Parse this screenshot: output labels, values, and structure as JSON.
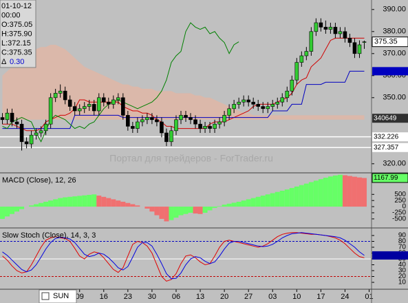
{
  "chart_data": [
    {
      "type": "candlestick",
      "open": [
        341,
        340,
        343,
        339,
        338,
        330,
        329,
        333,
        334,
        335,
        338,
        350,
        352,
        353,
        349,
        346,
        344,
        345,
        346,
        347,
        344,
        350,
        348,
        347,
        349,
        350,
        342,
        337,
        336,
        339,
        340,
        341,
        340,
        339,
        334,
        330,
        335,
        340,
        342,
        341,
        340,
        338,
        336,
        337,
        336,
        338,
        339,
        342,
        345,
        347,
        348,
        349,
        348,
        347,
        346,
        345,
        346,
        347,
        348,
        350,
        353,
        358,
        366,
        369,
        371,
        380,
        384,
        382,
        381,
        382,
        379,
        380,
        377,
        375,
        370,
        375.05
      ],
      "high": [
        343,
        345,
        345,
        341,
        340,
        332,
        335,
        336,
        337,
        340,
        352,
        354,
        356,
        355,
        351,
        348,
        347,
        348,
        349,
        349,
        352,
        352,
        350,
        351,
        352,
        352,
        344,
        339,
        341,
        342,
        343,
        343,
        342,
        341,
        336,
        337,
        342,
        344,
        344,
        343,
        342,
        340,
        339,
        339,
        340,
        341,
        344,
        347,
        349,
        350,
        351,
        351,
        350,
        349,
        348,
        348,
        349,
        350,
        352,
        355,
        360,
        368,
        371,
        373,
        382,
        386,
        386,
        385,
        384,
        384,
        382,
        382,
        379,
        377,
        376,
        375.9
      ],
      "low": [
        338,
        338,
        337,
        336,
        326,
        327,
        327,
        331,
        332,
        333,
        336,
        348,
        350,
        347,
        344,
        342,
        342,
        343,
        344,
        342,
        342,
        346,
        345,
        345,
        347,
        340,
        335,
        334,
        334,
        337,
        338,
        338,
        337,
        332,
        328,
        328,
        333,
        338,
        339,
        338,
        336,
        334,
        334,
        334,
        334,
        336,
        337,
        340,
        343,
        345,
        346,
        346,
        345,
        344,
        343,
        343,
        344,
        345,
        346,
        348,
        351,
        356,
        364,
        367,
        369,
        378,
        380,
        379,
        379,
        377,
        377,
        375,
        373,
        368,
        368,
        372.15
      ],
      "close": [
        340,
        343,
        339,
        338,
        330,
        329,
        333,
        334,
        335,
        338,
        350,
        352,
        353,
        349,
        346,
        344,
        345,
        346,
        347,
        344,
        350,
        348,
        347,
        349,
        350,
        342,
        337,
        336,
        339,
        340,
        341,
        340,
        339,
        334,
        330,
        335,
        340,
        342,
        341,
        340,
        338,
        336,
        337,
        336,
        338,
        339,
        342,
        345,
        347,
        348,
        349,
        348,
        347,
        346,
        345,
        346,
        347,
        348,
        350,
        353,
        358,
        366,
        369,
        371,
        380,
        384,
        382,
        381,
        382,
        379,
        380,
        377,
        375,
        370,
        374,
        375.35
      ],
      "up_color": "#33cc33",
      "down_color": "#000000",
      "lines": [
        {
          "color": "#d00000",
          "values": [
            338,
            338,
            338,
            337,
            336,
            335,
            335,
            335,
            336,
            339,
            340,
            341,
            342,
            342,
            343,
            345,
            349,
            349,
            348,
            348,
            348,
            348,
            348,
            348,
            348,
            346,
            345,
            344,
            344,
            343,
            343,
            342,
            340,
            339,
            337,
            337,
            336,
            336,
            336,
            336,
            336,
            336,
            336,
            338,
            339,
            339,
            339,
            340,
            341,
            342,
            343,
            344,
            346,
            347,
            347,
            347,
            347,
            348,
            349,
            350,
            352,
            356,
            358,
            359,
            364,
            366,
            368,
            372,
            376,
            377,
            377,
            377,
            377,
            377,
            377,
            377
          ]
        },
        {
          "color": "#0000c0",
          "values": [
            336,
            336,
            336,
            336,
            336,
            336,
            336,
            336,
            336,
            336,
            336,
            336,
            336,
            336,
            336,
            342,
            342,
            342,
            342,
            342,
            342,
            342,
            342,
            342,
            342,
            341,
            341,
            341,
            341,
            341,
            341,
            341,
            341,
            341,
            341,
            341,
            341,
            341,
            341,
            341,
            341,
            341,
            341,
            341,
            341,
            341,
            341,
            341,
            341,
            341,
            341,
            341,
            341,
            341,
            341,
            341,
            344,
            344,
            344,
            344,
            347,
            347,
            347,
            356,
            356,
            356,
            356,
            357,
            357,
            357,
            357,
            357,
            362,
            362,
            362,
            362
          ]
        },
        {
          "color": "#008000",
          "values": [
            337,
            336,
            339,
            340,
            341,
            340,
            339,
            334,
            330,
            335,
            340,
            342,
            341,
            340,
            338,
            336,
            337,
            336,
            338,
            339,
            342,
            345,
            347,
            348,
            349,
            348,
            347,
            346,
            345,
            346,
            347,
            348,
            350,
            353,
            358,
            366,
            369,
            371,
            380,
            384,
            382,
            381,
            382,
            379,
            380,
            377,
            375,
            370,
            374,
            375.35,
            null,
            null,
            null,
            null,
            null,
            null,
            null,
            null,
            null,
            null,
            null,
            null,
            null,
            null,
            null,
            null,
            null,
            null,
            null,
            null,
            null,
            null,
            null,
            null,
            null,
            null
          ]
        }
      ],
      "cloud": {
        "color": "#f0b098",
        "upper": [
          360,
          362,
          364,
          366,
          368,
          370,
          371,
          372,
          373,
          373,
          374,
          374,
          373,
          372,
          370,
          368,
          366,
          364,
          363,
          362,
          361,
          360,
          359,
          358,
          357,
          356,
          356,
          355,
          355,
          354,
          354,
          354,
          353,
          353,
          353,
          353,
          352,
          352,
          352,
          352,
          351,
          351,
          350,
          350,
          349,
          348,
          347,
          346,
          345,
          344,
          343,
          343,
          342,
          342,
          342,
          342,
          342,
          342,
          342,
          342,
          342,
          342,
          342,
          342,
          342,
          342,
          342,
          342,
          342,
          342,
          342,
          342,
          342,
          342,
          342,
          342
        ],
        "lower": [
          340,
          340,
          340,
          340,
          340,
          340,
          340,
          340,
          340,
          340,
          340,
          340,
          340,
          340,
          340,
          340,
          340,
          340,
          340,
          340,
          340,
          340,
          340,
          340,
          340,
          340,
          340,
          340,
          340,
          340,
          340,
          340,
          340,
          340,
          340,
          340,
          340,
          340,
          340,
          340,
          340,
          340,
          340,
          340,
          340,
          340,
          340,
          340,
          340,
          340,
          340,
          340,
          340,
          340,
          340,
          340,
          340,
          340,
          340,
          340,
          340,
          340,
          340,
          340,
          340,
          340,
          340,
          340,
          340,
          340,
          340,
          340,
          340,
          340,
          340,
          340
        ]
      },
      "ylim": [
        316,
        394
      ],
      "yticks": [
        {
          "value": 390,
          "label": "390.00"
        },
        {
          "value": 380,
          "label": "380.00"
        },
        {
          "value": 370,
          "label": "370.00"
        },
        {
          "value": 360,
          "label": "360.00"
        },
        {
          "value": 350,
          "label": "350.00"
        },
        {
          "value": 320,
          "label": "320.00"
        }
      ],
      "markers": [
        {
          "value": 340.649,
          "label": "340649"
        },
        332.226,
        327.357
      ],
      "watermark": "Портал для трейдеров - ForTrader.ru",
      "info": {
        "date": "01-10-12",
        "time": "00:00",
        "open": "O:375.05",
        "high": "H:375.90",
        "low": "L:372.15",
        "close": "C:375.35",
        "delta_symbol": "Δ",
        "delta": "0.30"
      }
    },
    {
      "type": "bar",
      "title": "MACD (Close), 12, 26",
      "values": [
        -500,
        -400,
        -300,
        -200,
        -100,
        0,
        50,
        100,
        150,
        200,
        250,
        300,
        350,
        380,
        400,
        420,
        440,
        460,
        480,
        500,
        450,
        400,
        350,
        300,
        250,
        200,
        150,
        100,
        50,
        0,
        -80,
        -200,
        -350,
        -500,
        -600,
        -550,
        -450,
        -350,
        -300,
        -250,
        -280,
        -300,
        -250,
        -150,
        -50,
        20,
        80,
        120,
        160,
        200,
        250,
        300,
        350,
        400,
        450,
        500,
        550,
        600,
        650,
        700,
        760,
        820,
        880,
        940,
        1000,
        1060,
        1120,
        1180,
        1230,
        1270,
        1300,
        1280,
        1250,
        1220,
        1190,
        1167.99
      ],
      "up_color": "#66ff66",
      "down_color": "#f07070",
      "ylim": [
        -700,
        1350
      ],
      "yticks": [
        500,
        250,
        0,
        -250,
        -500
      ]
    },
    {
      "type": "line",
      "title": "Slow Stoch (Close), 14, 3, 3",
      "series": [
        {
          "color": "#e00000",
          "values": [
            55,
            48,
            38,
            30,
            26,
            28,
            40,
            55,
            70,
            82,
            86,
            88,
            86,
            85,
            80,
            68,
            55,
            50,
            58,
            62,
            60,
            52,
            42,
            32,
            27,
            35,
            55,
            75,
            80,
            78,
            72,
            60,
            40,
            20,
            12,
            15,
            25,
            42,
            55,
            57,
            52,
            45,
            40,
            42,
            55,
            70,
            80,
            82,
            80,
            78,
            76,
            74,
            72,
            70,
            72,
            76,
            82,
            88,
            92,
            94,
            95,
            95,
            94,
            93,
            92,
            92,
            91,
            90,
            88,
            86,
            82,
            76,
            68,
            60,
            54,
            52
          ]
        },
        {
          "color": "#0000e0",
          "values": [
            62,
            56,
            48,
            40,
            32,
            28,
            31,
            40,
            53,
            67,
            78,
            85,
            87,
            86,
            84,
            78,
            68,
            58,
            54,
            56,
            60,
            58,
            52,
            44,
            35,
            31,
            37,
            53,
            70,
            78,
            78,
            72,
            58,
            42,
            25,
            16,
            17,
            26,
            40,
            50,
            54,
            52,
            46,
            42,
            45,
            55,
            67,
            77,
            80,
            80,
            78,
            76,
            74,
            72,
            71,
            72,
            75,
            80,
            86,
            90,
            93,
            94,
            95,
            94,
            93,
            92,
            91,
            90,
            89,
            88,
            86,
            82,
            76,
            70,
            62,
            56
          ]
        }
      ],
      "levels": [
        {
          "value": 80,
          "color": "#0000c0"
        },
        {
          "value": 50,
          "color": "#ffffff"
        },
        {
          "value": 20,
          "color": "#c00000"
        }
      ],
      "ylim": [
        0,
        100
      ],
      "yticks": [
        90,
        80,
        70,
        60,
        50,
        40,
        30,
        20,
        10
      ],
      "xlim": [
        -0.5,
        76.5
      ],
      "xticks": [
        {
          "value": 16,
          "label": "09"
        },
        {
          "value": 21,
          "label": "16"
        },
        {
          "value": 26,
          "label": "23"
        },
        {
          "value": 31,
          "label": "30"
        },
        {
          "value": 36,
          "label": "06"
        },
        {
          "value": 41,
          "label": "13"
        },
        {
          "value": 46,
          "label": "20"
        },
        {
          "value": 51,
          "label": "27"
        },
        {
          "value": 56,
          "label": "03"
        },
        {
          "value": 61,
          "label": "10"
        },
        {
          "value": 66,
          "label": "17"
        },
        {
          "value": 71,
          "label": "24"
        },
        {
          "value": 76,
          "label": "01"
        }
      ]
    }
  ],
  "checkbox": {
    "label": "SUN"
  }
}
